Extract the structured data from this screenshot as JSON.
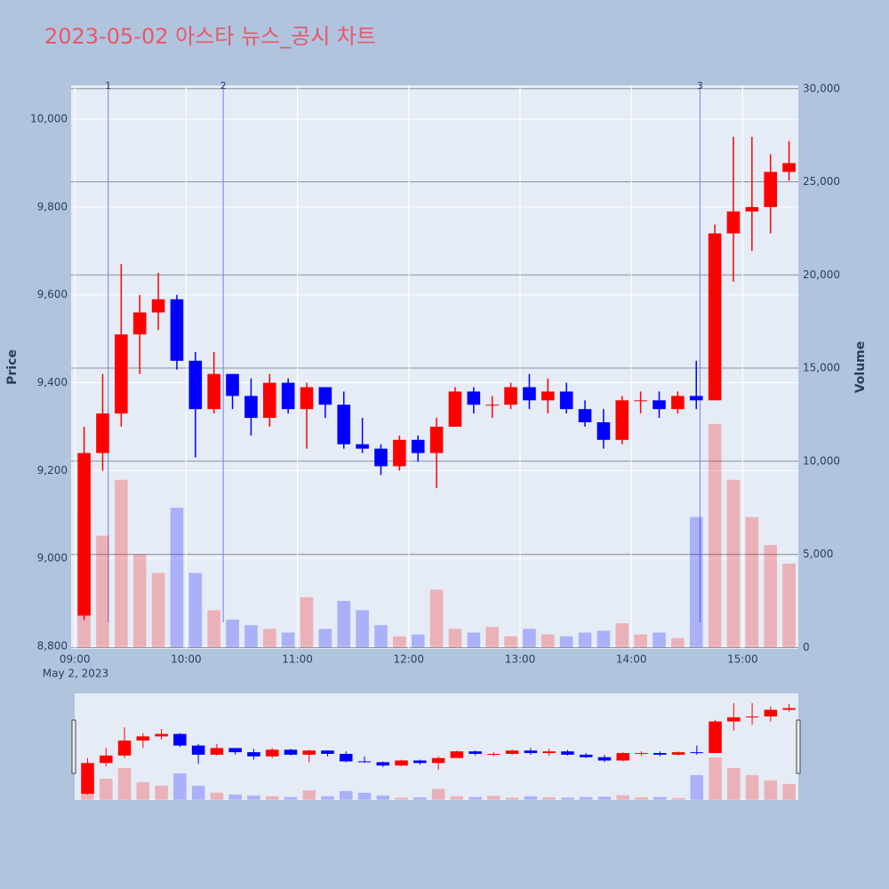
{
  "chart_data": {
    "type": "candlestick",
    "title": "2023-05-02 아스타 뉴스_공시 차트",
    "x_subtitle": "May 2, 2023",
    "y_label": "Price",
    "y2_label": "Volume",
    "x": [
      "09:00",
      "09:10",
      "09:20",
      "09:30",
      "09:40",
      "09:50",
      "10:00",
      "10:10",
      "10:20",
      "10:30",
      "10:40",
      "10:50",
      "11:00",
      "11:10",
      "11:20",
      "11:30",
      "11:40",
      "11:50",
      "12:00",
      "12:10",
      "12:20",
      "12:30",
      "12:40",
      "12:50",
      "13:00",
      "13:10",
      "13:20",
      "13:30",
      "13:40",
      "13:50",
      "14:00",
      "14:10",
      "14:20",
      "14:30",
      "14:40",
      "14:50",
      "15:00",
      "15:10",
      "15:20"
    ],
    "open": [
      8870,
      9240,
      9330,
      9510,
      9560,
      9590,
      9450,
      9340,
      9420,
      9370,
      9320,
      9400,
      9340,
      9390,
      9350,
      9260,
      9250,
      9210,
      9270,
      9240,
      9300,
      9380,
      9350,
      9350,
      9390,
      9360,
      9380,
      9340,
      9310,
      9270,
      9360,
      9360,
      9340,
      9370,
      9360,
      9740,
      9790,
      9800,
      9880
    ],
    "high": [
      9300,
      9420,
      9670,
      9600,
      9650,
      9600,
      9470,
      9470,
      9420,
      9410,
      9420,
      9410,
      9400,
      9390,
      9380,
      9320,
      9260,
      9280,
      9280,
      9320,
      9390,
      9390,
      9370,
      9400,
      9420,
      9410,
      9400,
      9360,
      9340,
      9370,
      9380,
      9380,
      9380,
      9450,
      9760,
      9960,
      9960,
      9920,
      9950
    ],
    "low": [
      8860,
      9200,
      9300,
      9420,
      9520,
      9430,
      9230,
      9330,
      9340,
      9280,
      9300,
      9330,
      9250,
      9320,
      9250,
      9240,
      9190,
      9200,
      9220,
      9160,
      9300,
      9330,
      9320,
      9340,
      9340,
      9330,
      9330,
      9300,
      9250,
      9260,
      9330,
      9320,
      9330,
      9340,
      9360,
      9630,
      9700,
      9740,
      9860
    ],
    "close": [
      9240,
      9330,
      9510,
      9560,
      9590,
      9450,
      9340,
      9420,
      9370,
      9320,
      9400,
      9340,
      9390,
      9350,
      9260,
      9250,
      9210,
      9270,
      9240,
      9300,
      9380,
      9350,
      9350,
      9390,
      9360,
      9380,
      9340,
      9310,
      9270,
      9360,
      9360,
      9340,
      9370,
      9360,
      9740,
      9790,
      9800,
      9880,
      9900
    ],
    "volume": [
      7000,
      6000,
      9000,
      5000,
      4000,
      7500,
      4000,
      2000,
      1500,
      1200,
      1000,
      800,
      2700,
      1000,
      2500,
      2000,
      1200,
      600,
      700,
      3100,
      1000,
      800,
      1100,
      600,
      1000,
      700,
      600,
      800,
      900,
      1300,
      700,
      800,
      500,
      7000,
      12000,
      9000,
      7000,
      5500,
      4500
    ],
    "increasing_color": "#ff0000",
    "decreasing_color": "#0000ff",
    "xlim": [
      "08:58",
      "15:30"
    ],
    "xticks": [
      "09:00",
      "10:00",
      "11:00",
      "12:00",
      "13:00",
      "14:00",
      "15:00"
    ],
    "ylim": [
      8794,
      10077
    ],
    "yticks": [
      {
        "value": 8800,
        "label": "8,800"
      },
      {
        "value": 9000,
        "label": "9,000"
      },
      {
        "value": 9200,
        "label": "9,200"
      },
      {
        "value": 9400,
        "label": "9,400"
      },
      {
        "value": 9600,
        "label": "9,600"
      },
      {
        "value": 9800,
        "label": "9,800"
      },
      {
        "value": 10000,
        "label": "10,000"
      }
    ],
    "y2lim": [
      -80,
      30180
    ],
    "y2ticks": [
      0,
      {
        "value": 5000,
        "label": "5,000"
      },
      {
        "value": 10000,
        "label": "10,000"
      },
      {
        "value": 15000,
        "label": "15,000"
      },
      {
        "value": 20000,
        "label": "20,000"
      },
      {
        "value": 25000,
        "label": "25,000"
      },
      {
        "value": 30000,
        "label": "30,000"
      }
    ],
    "markers": [
      {
        "x": "09:18",
        "label": "1"
      },
      {
        "x": "10:20",
        "label": "2"
      },
      {
        "x": "14:37",
        "label": "3"
      }
    ],
    "grid": true
  }
}
